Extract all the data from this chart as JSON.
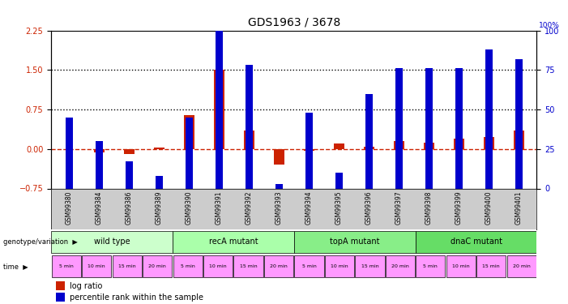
{
  "title": "GDS1963 / 3678",
  "samples": [
    "GSM99380",
    "GSM99384",
    "GSM99386",
    "GSM99389",
    "GSM99390",
    "GSM99391",
    "GSM99392",
    "GSM99393",
    "GSM99394",
    "GSM99395",
    "GSM99396",
    "GSM99397",
    "GSM99398",
    "GSM99399",
    "GSM99400",
    "GSM99401"
  ],
  "log_ratio": [
    0.0,
    -0.07,
    -0.1,
    0.02,
    0.65,
    1.5,
    0.35,
    -0.3,
    -0.03,
    0.1,
    0.05,
    0.15,
    0.12,
    0.2,
    0.22,
    0.35
  ],
  "pct_rank": [
    45,
    30,
    17,
    8,
    45,
    100,
    78,
    3,
    48,
    10,
    60,
    76,
    76,
    76,
    88,
    82
  ],
  "groups": [
    {
      "label": "wild type",
      "start": 0,
      "end": 4,
      "color": "#ccffcc"
    },
    {
      "label": "recA mutant",
      "start": 4,
      "end": 8,
      "color": "#aaffaa"
    },
    {
      "label": "topA mutant",
      "start": 8,
      "end": 12,
      "color": "#88ee88"
    },
    {
      "label": "dnaC mutant",
      "start": 12,
      "end": 16,
      "color": "#66dd66"
    }
  ],
  "time_labels": [
    "5 min",
    "10 min",
    "15 min",
    "20 min",
    "5 min",
    "10 min",
    "15 min",
    "20 min",
    "5 min",
    "10 min",
    "15 min",
    "20 min",
    "5 min",
    "10 min",
    "15 min",
    "20 min"
  ],
  "time_color": "#ff99ff",
  "bar_color_red": "#cc2200",
  "bar_color_blue": "#0000cc",
  "left_ylim": [
    -0.75,
    2.25
  ],
  "right_ylim": [
    0,
    100
  ],
  "left_yticks": [
    -0.75,
    0,
    0.75,
    1.5,
    2.25
  ],
  "right_yticks": [
    0,
    25,
    50,
    75,
    100
  ],
  "hline_y": [
    0.75,
    1.5
  ],
  "background": "#ffffff"
}
